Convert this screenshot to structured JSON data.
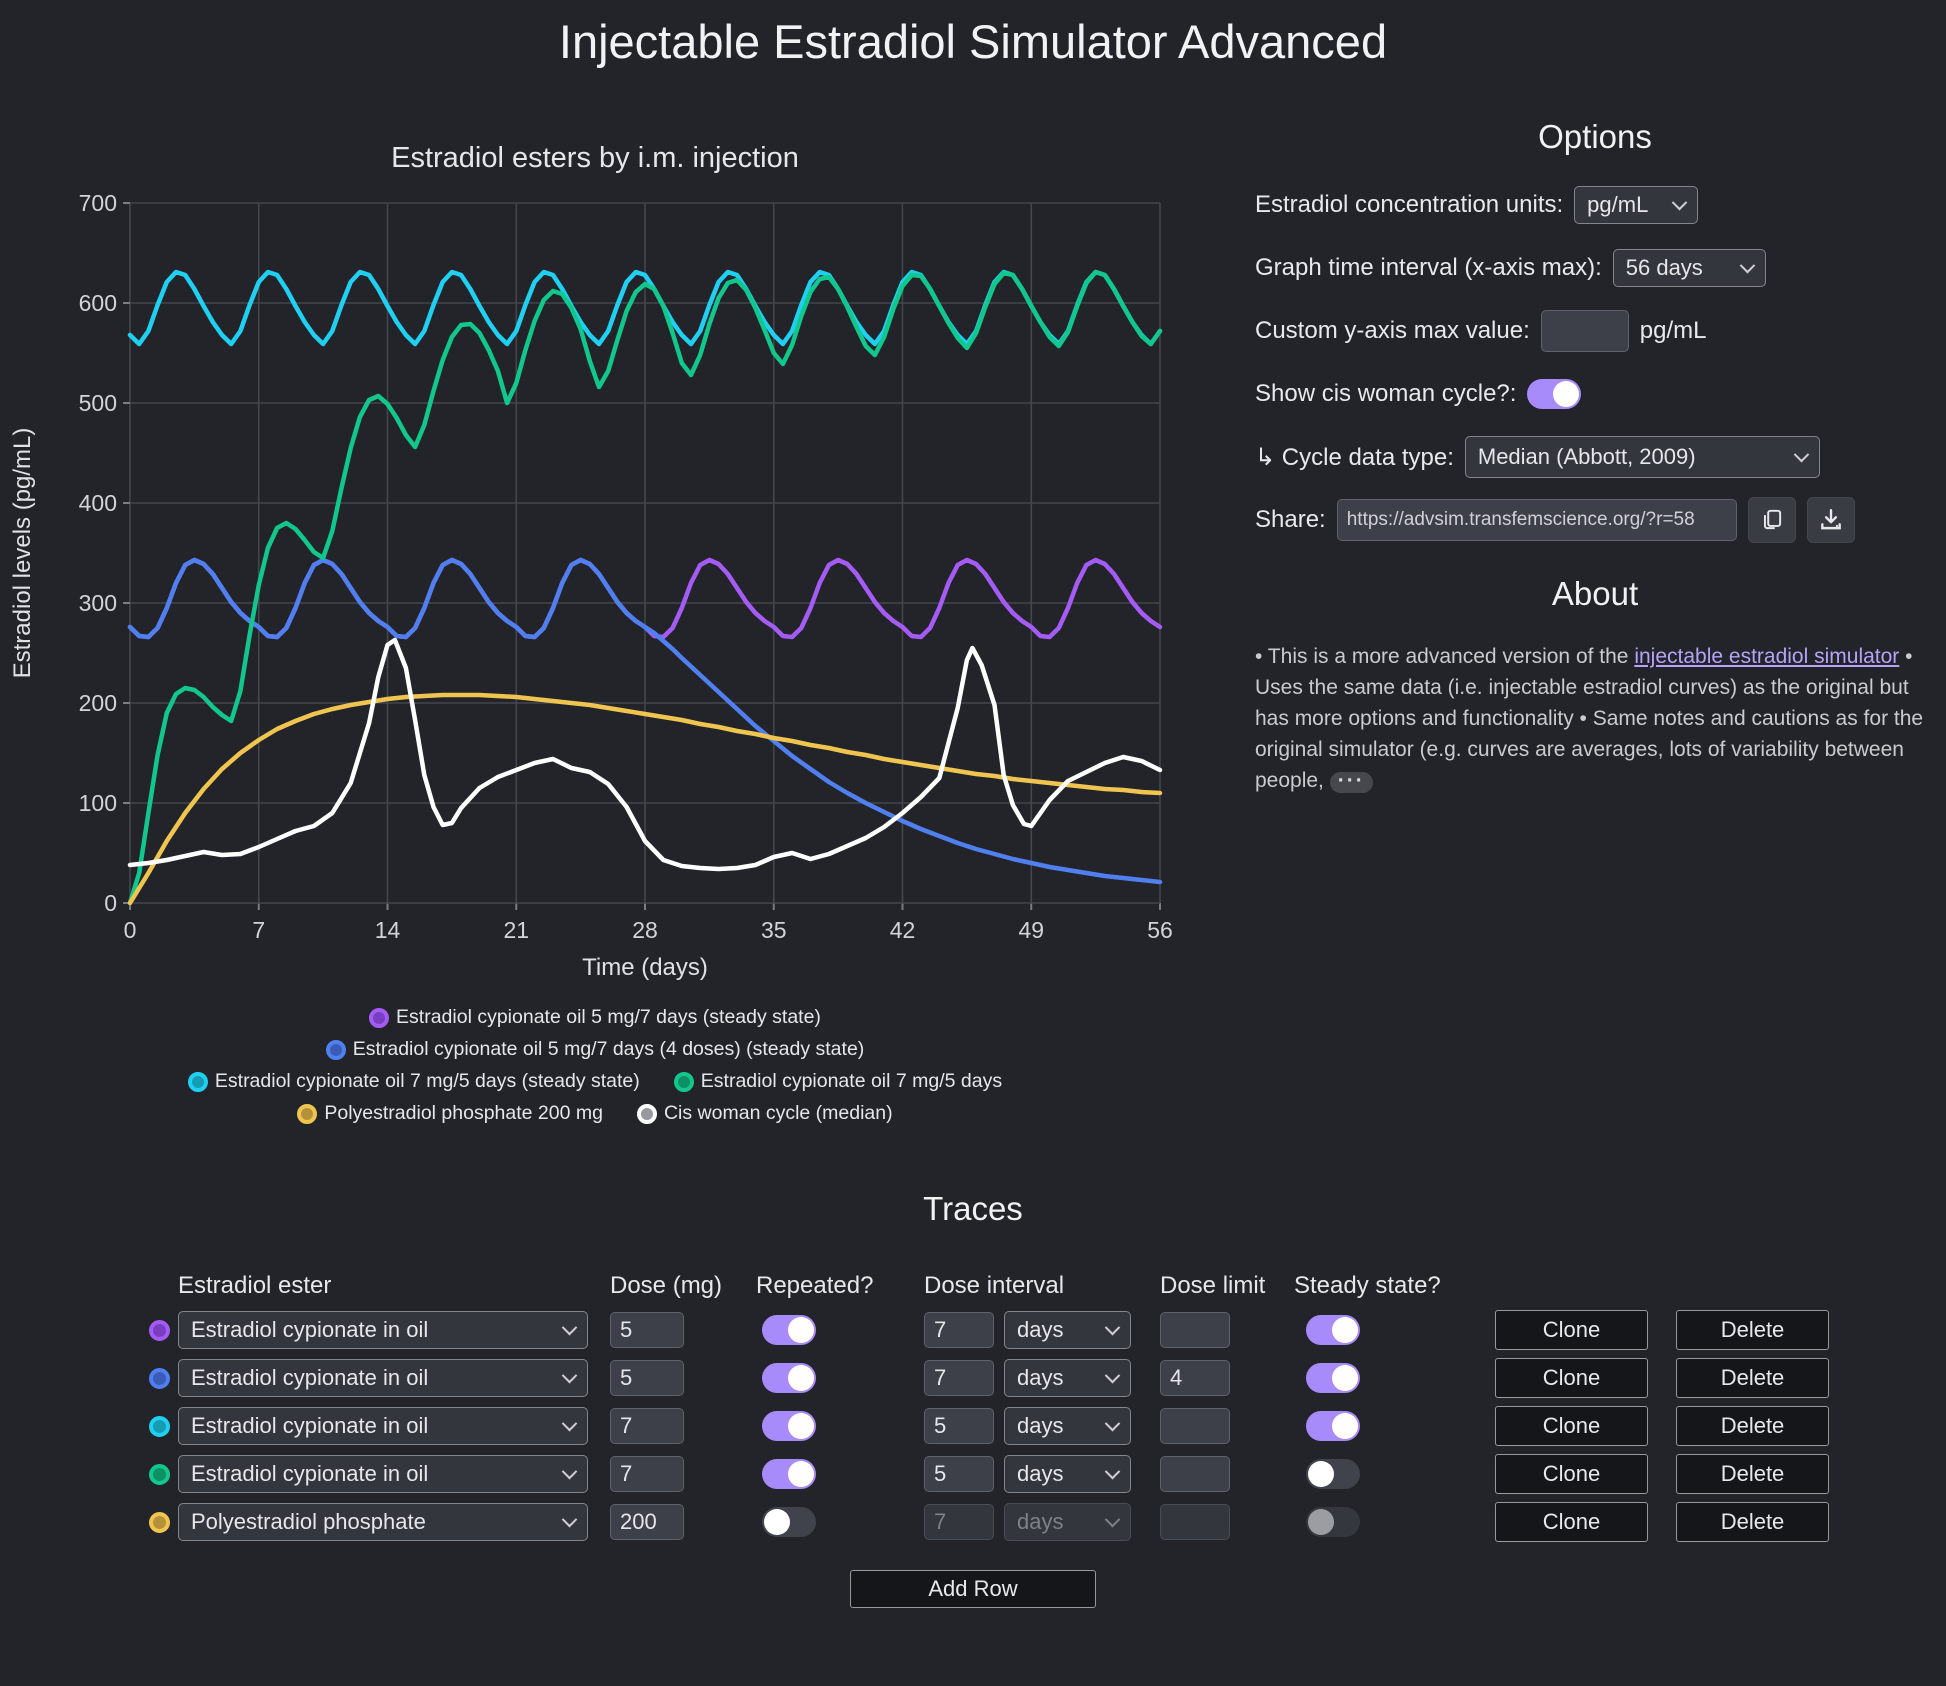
{
  "page": {
    "title": "Injectable Estradiol Simulator Advanced"
  },
  "chart_data": {
    "type": "line",
    "title": "Estradiol esters by i.m. injection",
    "xlabel": "Time (days)",
    "ylabel": "Estradiol levels (pg/mL)",
    "xlim": [
      0,
      56
    ],
    "ylim": [
      0,
      700
    ],
    "x_ticks": [
      0,
      7,
      14,
      21,
      28,
      35,
      42,
      49,
      56
    ],
    "y_ticks": [
      0,
      100,
      200,
      300,
      400,
      500,
      600,
      700
    ],
    "grid": true,
    "legend_position": "bottom",
    "legend_rows": [
      [
        0
      ],
      [
        1
      ],
      [
        2,
        3
      ],
      [
        4,
        5
      ]
    ],
    "series": [
      {
        "name": "Estradiol cypionate oil 5 mg/7 days (steady state)",
        "color": "#a55cf6",
        "marker_inner": "#7a3fc0",
        "segments": [
          {
            "repeat": {
              "start": 0,
              "period": 7,
              "step": 0.5,
              "count": 8,
              "values": [
                276,
                267,
                266,
                275,
                295,
                320,
                338,
                343,
                339,
                329,
                315,
                301,
                290,
                282
              ]
            }
          },
          {
            "points": [
              [
                56,
                276
              ]
            ]
          }
        ]
      },
      {
        "name": "Estradiol cypionate oil 5 mg/7 days (4 doses) (steady state)",
        "color": "#5080f0",
        "marker_inner": "#3a5cb8",
        "segments": [
          {
            "repeat": {
              "start": 0,
              "period": 7,
              "step": 0.5,
              "count": 4,
              "values": [
                276,
                267,
                266,
                275,
                295,
                320,
                338,
                343,
                339,
                329,
                315,
                301,
                290,
                282
              ]
            }
          },
          {
            "points": [
              [
                28,
                276
              ],
              [
                28.5,
                270
              ],
              [
                29,
                262
              ],
              [
                29.5,
                254
              ],
              [
                30,
                245
              ],
              [
                31,
                228
              ],
              [
                32,
                211
              ],
              [
                33,
                194
              ],
              [
                34,
                177
              ],
              [
                35,
                162
              ],
              [
                36,
                147
              ],
              [
                37,
                134
              ],
              [
                38,
                121
              ],
              [
                39,
                110
              ],
              [
                40,
                100
              ],
              [
                41,
                91
              ],
              [
                42,
                82
              ],
              [
                43,
                74
              ],
              [
                44,
                67
              ],
              [
                45,
                60
              ],
              [
                46,
                54
              ],
              [
                47,
                49
              ],
              [
                48,
                44
              ],
              [
                49,
                40
              ],
              [
                50,
                36
              ],
              [
                51,
                33
              ],
              [
                52,
                30
              ],
              [
                53,
                27
              ],
              [
                54,
                25
              ],
              [
                55,
                23
              ],
              [
                56,
                21
              ]
            ]
          }
        ]
      },
      {
        "name": "Estradiol cypionate oil 7 mg/5 days (steady state)",
        "color": "#20d0f2",
        "marker_inner": "#169bb4",
        "segments": [
          {
            "repeat": {
              "start": 0,
              "period": 5,
              "step": 0.5,
              "count": 11,
              "values": [
                568,
                559,
                572,
                598,
                621,
                631,
                628,
                614,
                597,
                581
              ]
            }
          },
          {
            "points": [
              [
                55,
                568
              ],
              [
                55.5,
                559
              ],
              [
                56,
                572
              ]
            ]
          }
        ]
      },
      {
        "name": "Estradiol cypionate oil 7 mg/5 days",
        "color": "#12c78c",
        "marker_inner": "#0e9066",
        "segments": [
          {
            "sampled": {
              "start": 0,
              "step": 0.5,
              "values": [
                0,
                30,
                90,
                148,
                190,
                209,
                215,
                213,
                206,
                196,
                188,
                182,
                212,
                268,
                318,
                355,
                375,
                380,
                374,
                363,
                351,
                345,
                372,
                415,
                455,
                486,
                503,
                507,
                499,
                485,
                468,
                456,
                478,
                512,
                543,
                566,
                578,
                579,
                570,
                553,
                532,
                500,
                520,
                553,
                582,
                603,
                612,
                609,
                595,
                574,
                542,
                516,
                532,
                563,
                592,
                611,
                619,
                614,
                597,
                570,
                540,
                528,
                548,
                579,
                605,
                620,
                623,
                613,
                595,
                573,
                550,
                539,
                558,
                587,
                611,
                624,
                626,
                614,
                596,
                576,
                557,
                548,
                566,
                594,
                617,
                628,
                627,
                614,
                597,
                580,
                565,
                555,
                570,
                596,
                619,
                630,
                628,
                614,
                597,
                581,
                566,
                557,
                571,
                597,
                620,
                631,
                628,
                614,
                597,
                581,
                567,
                559,
                572
              ]
            }
          }
        ]
      },
      {
        "name": "Polyestradiol phosphate 200 mg",
        "color": "#f0c54f",
        "marker_inner": "#b5913a",
        "segments": [
          {
            "sampled": {
              "start": 0,
              "step": 1,
              "values": [
                0,
                30,
                62,
                90,
                114,
                134,
                150,
                163,
                174,
                182,
                189,
                194,
                198,
                201,
                204,
                206,
                207,
                208,
                208,
                208,
                207,
                206,
                204,
                202,
                200,
                198,
                195,
                192,
                189,
                186,
                183,
                179,
                176,
                172,
                169,
                165,
                162,
                158,
                155,
                151,
                148,
                144,
                141,
                138,
                135,
                132,
                129,
                127,
                124,
                122,
                120,
                118,
                116,
                114,
                113,
                111,
                110
              ]
            }
          }
        ]
      },
      {
        "name": "Cis woman cycle (median)",
        "color": "#ffffff",
        "marker_inner": "#97999e",
        "segments": [
          {
            "points": [
              [
                0,
                38
              ],
              [
                1,
                40
              ],
              [
                2,
                43
              ],
              [
                3,
                47
              ],
              [
                4,
                51
              ],
              [
                5,
                48
              ],
              [
                6,
                49
              ],
              [
                7,
                56
              ],
              [
                8,
                64
              ],
              [
                9,
                72
              ],
              [
                10,
                77
              ],
              [
                11,
                90
              ],
              [
                12,
                120
              ],
              [
                13,
                180
              ],
              [
                13.5,
                226
              ],
              [
                14,
                258
              ],
              [
                14.4,
                263
              ],
              [
                15,
                235
              ],
              [
                15.5,
                183
              ],
              [
                16,
                128
              ],
              [
                16.5,
                96
              ],
              [
                17,
                78
              ],
              [
                17.5,
                80
              ],
              [
                18,
                95
              ],
              [
                19,
                115
              ],
              [
                20,
                126
              ],
              [
                21,
                133
              ],
              [
                22,
                140
              ],
              [
                23,
                144
              ],
              [
                24,
                135
              ],
              [
                25,
                131
              ],
              [
                26,
                119
              ],
              [
                27,
                96
              ],
              [
                28,
                62
              ],
              [
                29,
                43
              ],
              [
                30,
                37
              ],
              [
                31,
                35
              ],
              [
                32,
                34
              ],
              [
                33,
                35
              ],
              [
                34,
                38
              ],
              [
                35,
                46
              ],
              [
                36,
                50
              ],
              [
                37,
                44
              ],
              [
                38,
                49
              ],
              [
                39,
                57
              ],
              [
                40,
                65
              ],
              [
                41,
                76
              ],
              [
                42,
                90
              ],
              [
                43,
                106
              ],
              [
                44,
                125
              ],
              [
                45,
                195
              ],
              [
                45.5,
                243
              ],
              [
                45.8,
                255
              ],
              [
                46.3,
                238
              ],
              [
                47,
                198
              ],
              [
                47.5,
                128
              ],
              [
                48,
                98
              ],
              [
                48.6,
                79
              ],
              [
                49,
                77
              ],
              [
                50,
                103
              ],
              [
                51,
                122
              ],
              [
                52,
                131
              ],
              [
                53,
                140
              ],
              [
                54,
                146
              ],
              [
                55,
                142
              ],
              [
                56,
                133
              ]
            ]
          }
        ]
      }
    ]
  },
  "options": {
    "heading": "Options",
    "units_label": "Estradiol concentration units:",
    "units_value": "pg/mL",
    "interval_label": "Graph time interval (x-axis max):",
    "interval_value": "56 days",
    "ymax_label": "Custom y-axis max value:",
    "ymax_value": "",
    "ymax_suffix": "pg/mL",
    "cycle_toggle_label": "Show cis woman cycle?:",
    "cycle_toggle_on": true,
    "cycle_type_label": "↳ Cycle data type:",
    "cycle_type_value": "Median (Abbott, 2009)",
    "share_label": "Share:",
    "share_url": "https://advsim.transfemscience.org/?r=58"
  },
  "about": {
    "heading": "About",
    "text_before_link": "• This is a more advanced version of the ",
    "link_text": "injectable estradiol simulator",
    "text_after_link": " • Uses the same data (i.e. injectable estradiol curves) as the original but has more options and functionality • Same notes and cautions as for the original simulator (e.g. curves are averages, lots of variability between people,",
    "ellipsis": "···"
  },
  "traces": {
    "heading": "Traces",
    "headers": {
      "ester": "Estradiol ester",
      "dose": "Dose (mg)",
      "repeated": "Repeated?",
      "interval": "Dose interval",
      "limit": "Dose limit",
      "steady": "Steady state?"
    },
    "clone_label": "Clone",
    "delete_label": "Delete",
    "add_row_label": "Add Row",
    "rows": [
      {
        "color": "#a55cf6",
        "inner": "#7a3fc0",
        "ester": "Estradiol cypionate in oil",
        "dose": "5",
        "repeated": true,
        "interval": "7",
        "unit": "days",
        "limit": "",
        "steady": true,
        "disabled": false
      },
      {
        "color": "#5080f0",
        "inner": "#3a5cb8",
        "ester": "Estradiol cypionate in oil",
        "dose": "5",
        "repeated": true,
        "interval": "7",
        "unit": "days",
        "limit": "4",
        "steady": true,
        "disabled": false
      },
      {
        "color": "#20d0f2",
        "inner": "#169bb4",
        "ester": "Estradiol cypionate in oil",
        "dose": "7",
        "repeated": true,
        "interval": "5",
        "unit": "days",
        "limit": "",
        "steady": true,
        "disabled": false
      },
      {
        "color": "#12c78c",
        "inner": "#0e9066",
        "ester": "Estradiol cypionate in oil",
        "dose": "7",
        "repeated": true,
        "interval": "5",
        "unit": "days",
        "limit": "",
        "steady": false,
        "disabled": false
      },
      {
        "color": "#f0c54f",
        "inner": "#b5913a",
        "ester": "Polyestradiol phosphate",
        "dose": "200",
        "repeated": false,
        "interval": "7",
        "unit": "days",
        "limit": "",
        "steady": false,
        "disabled": true
      }
    ]
  }
}
